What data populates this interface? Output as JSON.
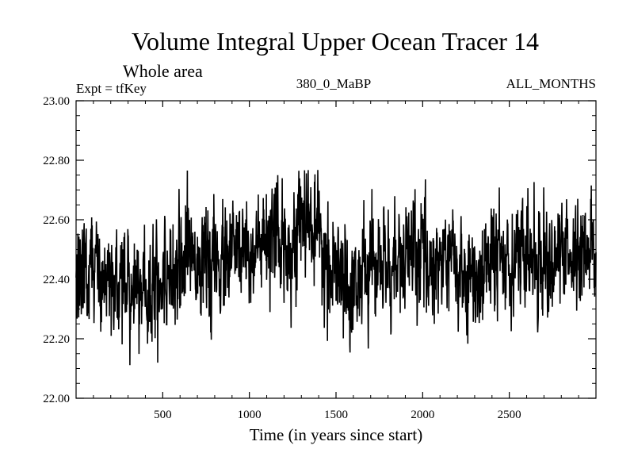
{
  "chart_data": {
    "type": "line",
    "title": "Volume Integral Upper Ocean Tracer 14",
    "subtitle": "Whole area",
    "annotations": {
      "left": "Expt = tfKey",
      "center": "380_0_MaBP",
      "right": "ALL_MONTHS"
    },
    "xlabel": "Time (in years since start)",
    "ylabel": "",
    "xlim": [
      0,
      3000
    ],
    "ylim": [
      22.0,
      23.0
    ],
    "x_ticks": [
      500,
      1000,
      1500,
      2000,
      2500
    ],
    "x_tick_labels": [
      "500",
      "1000",
      "1500",
      "2000",
      "2500"
    ],
    "y_ticks": [
      22.0,
      22.2,
      22.4,
      22.6,
      22.8,
      23.0
    ],
    "y_tick_labels": [
      "22.00",
      "22.20",
      "22.40",
      "22.60",
      "22.80",
      "23.00"
    ],
    "grid": false,
    "line_color": "#000000",
    "series": [
      {
        "x": [
          0,
          50,
          100,
          150,
          200,
          250,
          300,
          350,
          400,
          450,
          500,
          550,
          600,
          650,
          700,
          750,
          800,
          850,
          900,
          950,
          1000,
          1050,
          1100,
          1150,
          1200,
          1250,
          1300,
          1350,
          1400,
          1450,
          1500,
          1550,
          1600,
          1650,
          1700,
          1750,
          1800,
          1850,
          1900,
          1950,
          2000,
          2050,
          2100,
          2150,
          2200,
          2250,
          2300,
          2350,
          2400,
          2450,
          2500,
          2550,
          2600,
          2650,
          2700,
          2750,
          2800,
          2850,
          2900,
          2950,
          3000
        ],
        "values": [
          22.38,
          22.46,
          22.44,
          22.4,
          22.38,
          22.39,
          22.37,
          22.38,
          22.36,
          22.37,
          22.39,
          22.44,
          22.47,
          22.5,
          22.49,
          22.44,
          22.43,
          22.45,
          22.48,
          22.5,
          22.51,
          22.49,
          22.5,
          22.51,
          22.52,
          22.54,
          22.58,
          22.6,
          22.5,
          22.44,
          22.4,
          22.38,
          22.38,
          22.41,
          22.44,
          22.46,
          22.44,
          22.45,
          22.47,
          22.48,
          22.48,
          22.46,
          22.45,
          22.49,
          22.43,
          22.38,
          22.39,
          22.44,
          22.47,
          22.48,
          22.48,
          22.49,
          22.48,
          22.47,
          22.48,
          22.46,
          22.48,
          22.47,
          22.49,
          22.48,
          22.49
        ]
      }
    ]
  }
}
